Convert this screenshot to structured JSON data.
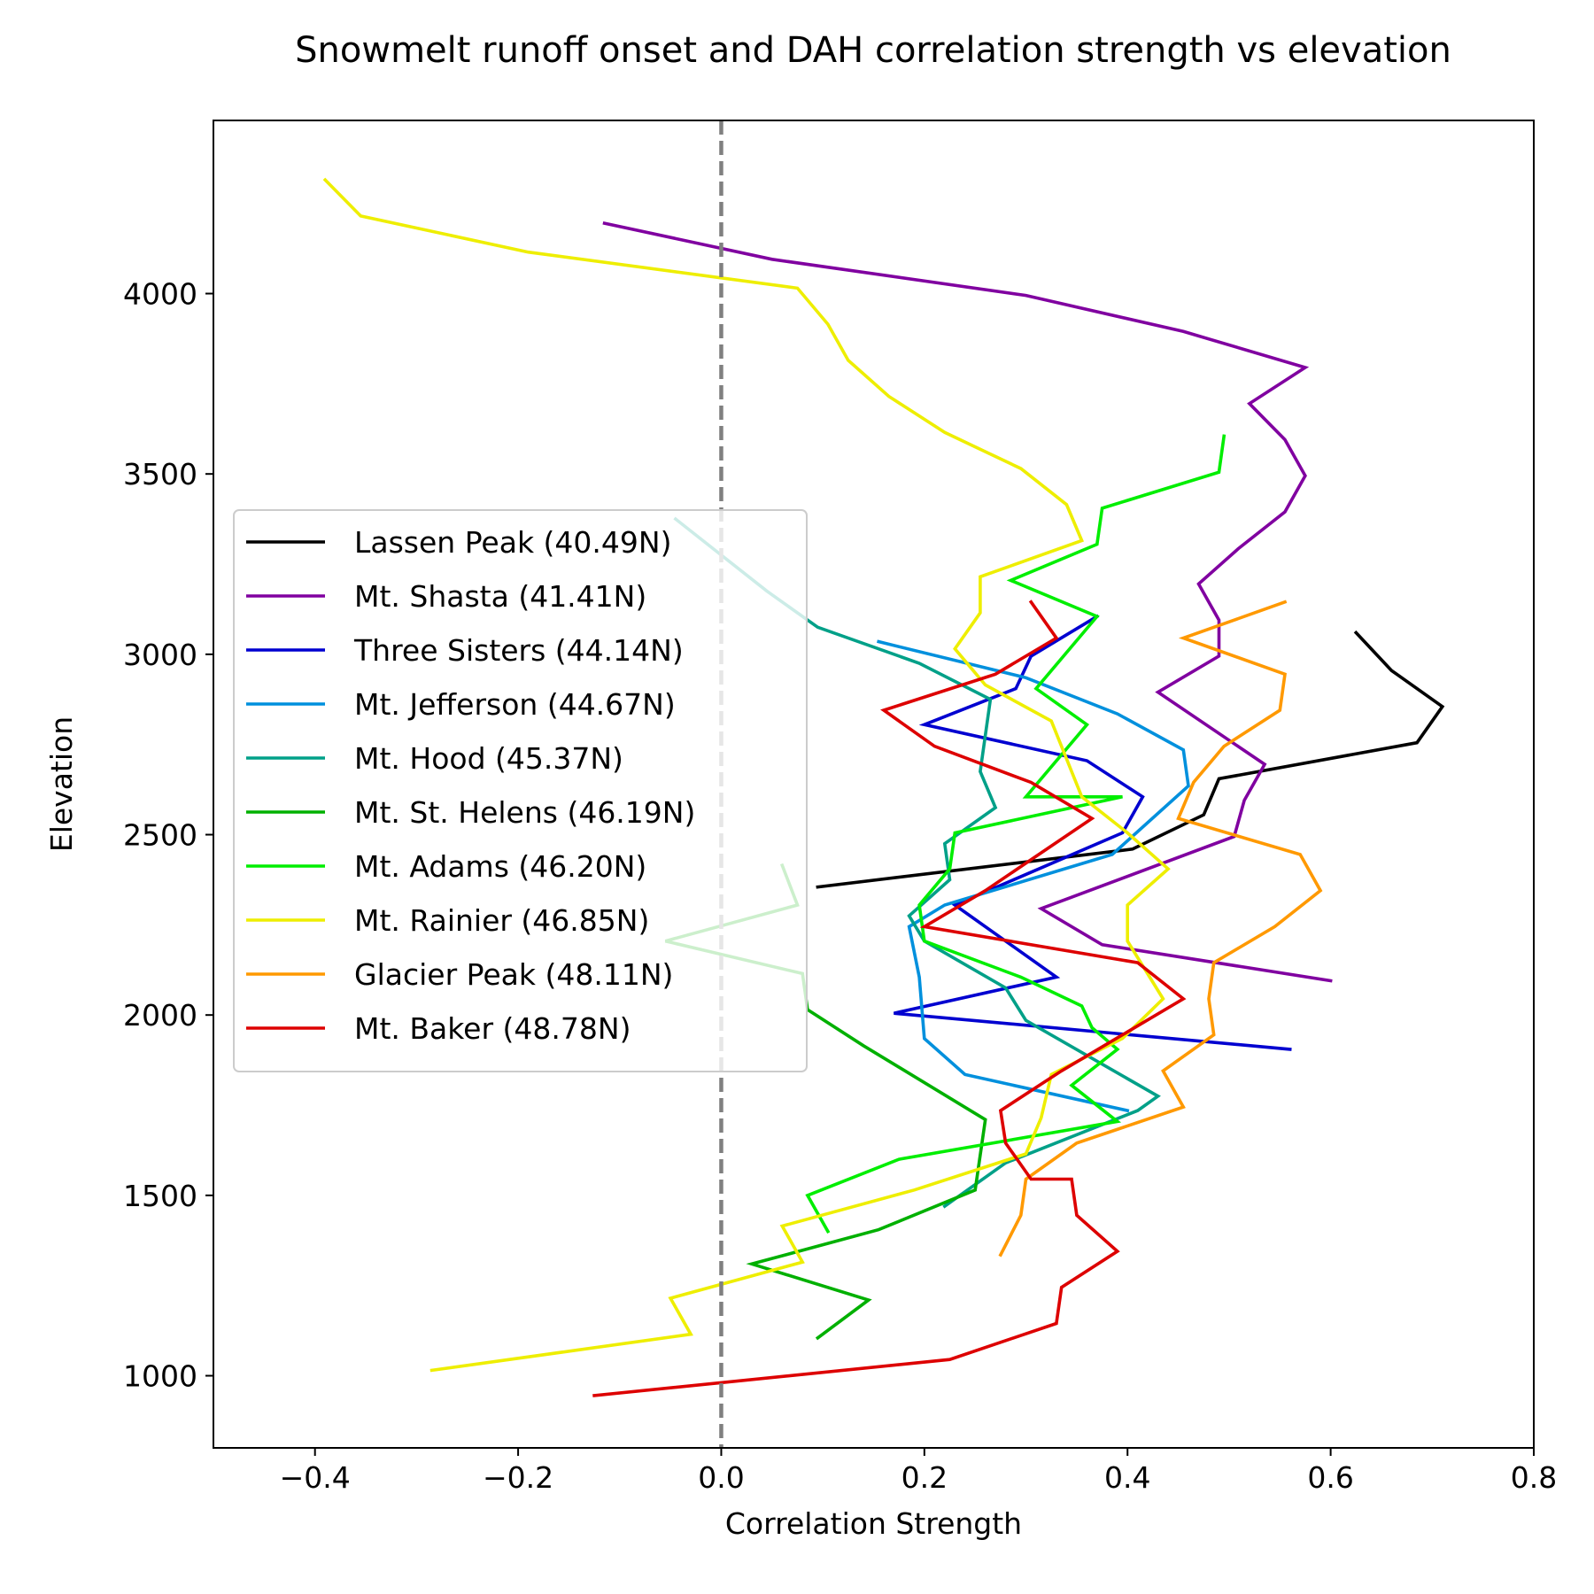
{
  "chart_data": {
    "type": "line",
    "title": "Snowmelt runoff onset and DAH correlation strength vs elevation",
    "xlabel": "Correlation Strength",
    "ylabel": "Elevation",
    "xlim": [
      -0.5,
      0.8
    ],
    "ylim": [
      800,
      4480
    ],
    "xticks": [
      -0.4,
      -0.2,
      0.0,
      0.2,
      0.4,
      0.6,
      0.8
    ],
    "xtick_labels": [
      "−0.4",
      "−0.2",
      "0.0",
      "0.2",
      "0.4",
      "0.6",
      "0.8"
    ],
    "yticks": [
      1000,
      1500,
      2000,
      2500,
      3000,
      3500,
      4000
    ],
    "ytick_labels": [
      "1000",
      "1500",
      "2000",
      "2500",
      "3000",
      "3500",
      "4000"
    ],
    "reference_line": {
      "x": 0.0,
      "color": "#808080",
      "style": "dashed"
    },
    "grid": false,
    "legend": {
      "position": "center-left"
    },
    "series": [
      {
        "name": "Lassen Peak (40.49N)",
        "color": "#000000",
        "points": [
          [
            0.095,
            2355
          ],
          [
            0.405,
            2460
          ],
          [
            0.475,
            2555
          ],
          [
            0.49,
            2655
          ],
          [
            0.685,
            2755
          ],
          [
            0.71,
            2855
          ],
          [
            0.66,
            2955
          ],
          [
            0.625,
            3060
          ]
        ]
      },
      {
        "name": "Mt. Shasta (41.41N)",
        "color": "#8000a0",
        "points": [
          [
            0.6,
            2095
          ],
          [
            0.375,
            2195
          ],
          [
            0.315,
            2295
          ],
          [
            0.505,
            2495
          ],
          [
            0.515,
            2595
          ],
          [
            0.535,
            2695
          ],
          [
            0.43,
            2895
          ],
          [
            0.49,
            2995
          ],
          [
            0.49,
            3095
          ],
          [
            0.47,
            3195
          ],
          [
            0.51,
            3295
          ],
          [
            0.555,
            3395
          ],
          [
            0.575,
            3495
          ],
          [
            0.555,
            3595
          ],
          [
            0.52,
            3695
          ],
          [
            0.575,
            3795
          ],
          [
            0.455,
            3895
          ],
          [
            0.3,
            3995
          ],
          [
            0.05,
            4095
          ],
          [
            -0.115,
            4195
          ]
        ]
      },
      {
        "name": "Three Sisters (44.14N)",
        "color": "#0000d0",
        "points": [
          [
            0.56,
            1905
          ],
          [
            0.17,
            2005
          ],
          [
            0.33,
            2105
          ],
          [
            0.23,
            2305
          ],
          [
            0.395,
            2505
          ],
          [
            0.415,
            2605
          ],
          [
            0.36,
            2705
          ],
          [
            0.2,
            2805
          ],
          [
            0.29,
            2905
          ],
          [
            0.305,
            2995
          ],
          [
            0.37,
            3105
          ]
        ]
      },
      {
        "name": "Mt. Jefferson (44.67N)",
        "color": "#0090dd",
        "points": [
          [
            0.4,
            1735
          ],
          [
            0.24,
            1835
          ],
          [
            0.2,
            1935
          ],
          [
            0.195,
            2105
          ],
          [
            0.185,
            2245
          ],
          [
            0.22,
            2305
          ],
          [
            0.385,
            2445
          ],
          [
            0.46,
            2635
          ],
          [
            0.455,
            2735
          ],
          [
            0.39,
            2835
          ],
          [
            0.3,
            2935
          ],
          [
            0.155,
            3035
          ]
        ]
      },
      {
        "name": "Mt. Hood (45.37N)",
        "color": "#00a088",
        "points": [
          [
            0.22,
            1470
          ],
          [
            0.28,
            1590
          ],
          [
            0.41,
            1735
          ],
          [
            0.43,
            1775
          ],
          [
            0.3,
            1985
          ],
          [
            0.28,
            2075
          ],
          [
            0.2,
            2205
          ],
          [
            0.185,
            2275
          ],
          [
            0.225,
            2375
          ],
          [
            0.22,
            2475
          ],
          [
            0.27,
            2575
          ],
          [
            0.255,
            2675
          ],
          [
            0.265,
            2875
          ],
          [
            0.195,
            2975
          ],
          [
            0.095,
            3075
          ],
          [
            0.045,
            3175
          ],
          [
            -0.045,
            3375
          ]
        ]
      },
      {
        "name": "Mt. St. Helens (46.19N)",
        "color": "#00b000",
        "points": [
          [
            0.095,
            1105
          ],
          [
            0.145,
            1210
          ],
          [
            0.03,
            1310
          ],
          [
            0.155,
            1405
          ],
          [
            0.25,
            1515
          ],
          [
            0.26,
            1710
          ],
          [
            0.14,
            1915
          ],
          [
            0.085,
            2015
          ],
          [
            0.08,
            2115
          ],
          [
            -0.055,
            2205
          ],
          [
            0.075,
            2305
          ],
          [
            0.06,
            2415
          ]
        ]
      },
      {
        "name": "Mt. Adams (46.20N)",
        "color": "#00ee00",
        "points": [
          [
            0.105,
            1400
          ],
          [
            0.085,
            1500
          ],
          [
            0.175,
            1600
          ],
          [
            0.39,
            1705
          ],
          [
            0.345,
            1805
          ],
          [
            0.39,
            1905
          ],
          [
            0.365,
            1965
          ],
          [
            0.355,
            2025
          ],
          [
            0.295,
            2105
          ],
          [
            0.2,
            2205
          ],
          [
            0.195,
            2305
          ],
          [
            0.225,
            2405
          ],
          [
            0.23,
            2505
          ],
          [
            0.395,
            2605
          ],
          [
            0.3,
            2605
          ],
          [
            0.36,
            2805
          ],
          [
            0.31,
            2905
          ],
          [
            0.37,
            3105
          ],
          [
            0.285,
            3205
          ],
          [
            0.37,
            3305
          ],
          [
            0.375,
            3405
          ],
          [
            0.49,
            3505
          ],
          [
            0.495,
            3605
          ]
        ]
      },
      {
        "name": "Mt. Rainier (46.85N)",
        "color": "#eeee00",
        "points": [
          [
            -0.285,
            1015
          ],
          [
            -0.03,
            1115
          ],
          [
            -0.05,
            1215
          ],
          [
            0.08,
            1315
          ],
          [
            0.06,
            1415
          ],
          [
            0.19,
            1515
          ],
          [
            0.3,
            1615
          ],
          [
            0.315,
            1715
          ],
          [
            0.325,
            1835
          ],
          [
            0.395,
            1935
          ],
          [
            0.435,
            2045
          ],
          [
            0.4,
            2205
          ],
          [
            0.4,
            2305
          ],
          [
            0.44,
            2405
          ],
          [
            0.4,
            2505
          ],
          [
            0.355,
            2605
          ],
          [
            0.325,
            2815
          ],
          [
            0.26,
            2915
          ],
          [
            0.23,
            3015
          ],
          [
            0.255,
            3115
          ],
          [
            0.255,
            3215
          ],
          [
            0.355,
            3315
          ],
          [
            0.34,
            3415
          ],
          [
            0.295,
            3515
          ],
          [
            0.22,
            3615
          ],
          [
            0.165,
            3715
          ],
          [
            0.125,
            3815
          ],
          [
            0.105,
            3915
          ],
          [
            0.075,
            4015
          ],
          [
            -0.19,
            4115
          ],
          [
            -0.355,
            4215
          ],
          [
            -0.39,
            4315
          ]
        ]
      },
      {
        "name": "Glacier Peak (48.11N)",
        "color": "#ff9900",
        "points": [
          [
            0.275,
            1335
          ],
          [
            0.295,
            1445
          ],
          [
            0.3,
            1545
          ],
          [
            0.35,
            1645
          ],
          [
            0.455,
            1745
          ],
          [
            0.435,
            1845
          ],
          [
            0.485,
            1945
          ],
          [
            0.48,
            2045
          ],
          [
            0.485,
            2145
          ],
          [
            0.545,
            2245
          ],
          [
            0.59,
            2345
          ],
          [
            0.57,
            2445
          ],
          [
            0.45,
            2545
          ],
          [
            0.465,
            2645
          ],
          [
            0.495,
            2745
          ],
          [
            0.55,
            2845
          ],
          [
            0.555,
            2945
          ],
          [
            0.455,
            3045
          ],
          [
            0.505,
            3095
          ],
          [
            0.555,
            3145
          ]
        ]
      },
      {
        "name": "Mt. Baker (48.78N)",
        "color": "#dd0000",
        "points": [
          [
            -0.125,
            945
          ],
          [
            0.225,
            1045
          ],
          [
            0.33,
            1145
          ],
          [
            0.335,
            1245
          ],
          [
            0.39,
            1345
          ],
          [
            0.35,
            1445
          ],
          [
            0.345,
            1545
          ],
          [
            0.305,
            1545
          ],
          [
            0.28,
            1645
          ],
          [
            0.275,
            1735
          ],
          [
            0.335,
            1845
          ],
          [
            0.395,
            1945
          ],
          [
            0.455,
            2045
          ],
          [
            0.41,
            2145
          ],
          [
            0.2,
            2245
          ],
          [
            0.26,
            2345
          ],
          [
            0.365,
            2545
          ],
          [
            0.305,
            2645
          ],
          [
            0.21,
            2745
          ],
          [
            0.16,
            2845
          ],
          [
            0.27,
            2945
          ],
          [
            0.33,
            3045
          ],
          [
            0.305,
            3145
          ]
        ]
      }
    ]
  }
}
